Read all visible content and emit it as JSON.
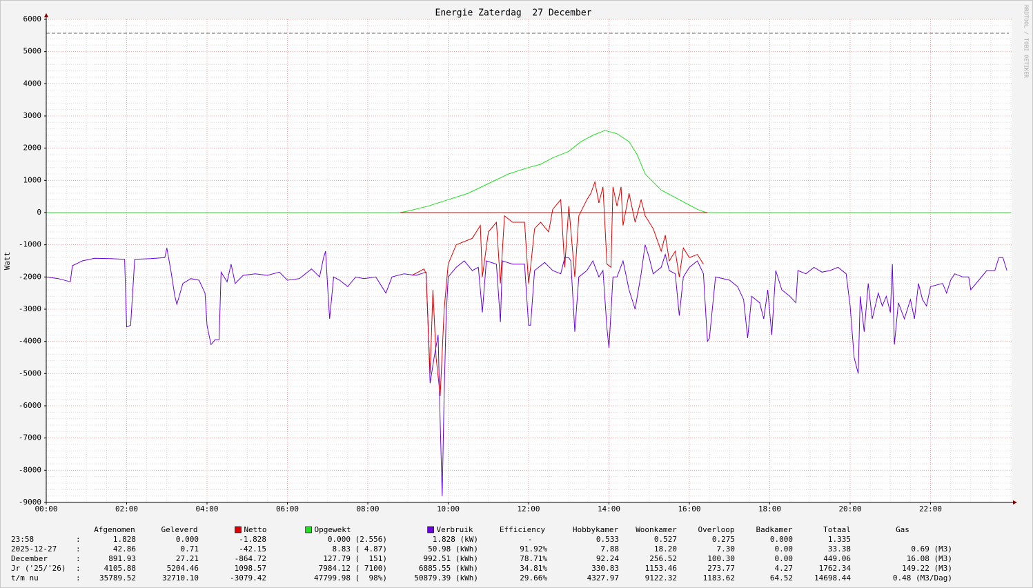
{
  "chart_data": {
    "type": "line",
    "title": "Energie Zaterdag  27 December",
    "y_label": "Watt",
    "side_text": "RRDTOOL / TOBI OETIKER",
    "xlim": [
      0,
      24
    ],
    "xticks": [
      {
        "value": 0,
        "label": "00:00"
      },
      {
        "value": 2,
        "label": "02:00"
      },
      {
        "value": 4,
        "label": "04:00"
      },
      {
        "value": 6,
        "label": "06:00"
      },
      {
        "value": 8,
        "label": "08:00"
      },
      {
        "value": 10,
        "label": "10:00"
      },
      {
        "value": 12,
        "label": "12:00"
      },
      {
        "value": 14,
        "label": "14:00"
      },
      {
        "value": 16,
        "label": "16:00"
      },
      {
        "value": 18,
        "label": "18:00"
      },
      {
        "value": 20,
        "label": "20:00"
      },
      {
        "value": 22,
        "label": "22:00"
      }
    ],
    "ylim": [
      -9000,
      6000
    ],
    "yticks": [
      6000,
      5000,
      4000,
      3000,
      2000,
      1000,
      0,
      -1000,
      -2000,
      -3000,
      -4000,
      -5000,
      -6000,
      -7000,
      -8000,
      -9000
    ],
    "grid": {
      "minor_x": 0.5,
      "minor_y": 200
    },
    "limit_line": 5570,
    "series": [
      {
        "color": "#6a00e0",
        "x": [
          0,
          0.3,
          0.6,
          0.65,
          0.9,
          1.2,
          1.6,
          1.95,
          2.0,
          2.1,
          2.15,
          2.2,
          2.6,
          2.95,
          3.0,
          3.1,
          3.2,
          3.25,
          3.4,
          3.6,
          3.8,
          3.95,
          4.0,
          4.1,
          4.2,
          4.3,
          4.35,
          4.5,
          4.6,
          4.7,
          4.9,
          5.2,
          5.5,
          5.8,
          6.0,
          6.3,
          6.6,
          6.8,
          6.9,
          6.95,
          7.0,
          7.05,
          7.15,
          7.3,
          7.5,
          7.7,
          7.9,
          8.2,
          8.45,
          8.6,
          8.9,
          9.2,
          9.45,
          9.5,
          9.55,
          9.65,
          9.75,
          9.8,
          9.85,
          9.9,
          9.95,
          10.0,
          10.2,
          10.4,
          10.6,
          10.75,
          10.85,
          10.95,
          11.2,
          11.3,
          11.35,
          11.6,
          11.9,
          12.0,
          12.05,
          12.15,
          12.4,
          12.6,
          12.8,
          12.9,
          13.0,
          13.05,
          13.15,
          13.25,
          13.45,
          13.6,
          13.75,
          13.85,
          13.95,
          14.0,
          14.1,
          14.2,
          14.35,
          14.5,
          14.65,
          14.8,
          14.9,
          15.0,
          15.1,
          15.3,
          15.4,
          15.5,
          15.65,
          15.75,
          15.85,
          16.0,
          16.2,
          16.35,
          16.45,
          16.5,
          16.65,
          17.0,
          17.2,
          17.35,
          17.45,
          17.55,
          17.75,
          17.85,
          17.95,
          18.05,
          18.15,
          18.3,
          18.5,
          18.65,
          18.7,
          18.9,
          19.1,
          19.3,
          19.5,
          19.7,
          19.9,
          20.0,
          20.1,
          20.2,
          20.25,
          20.35,
          20.45,
          20.55,
          20.7,
          20.8,
          20.9,
          21.0,
          21.05,
          21.1,
          21.2,
          21.35,
          21.5,
          21.6,
          21.7,
          21.8,
          21.9,
          22.0,
          22.3,
          22.4,
          22.5,
          22.6,
          22.8,
          22.95,
          23.0,
          23.2,
          23.4,
          23.6,
          23.7,
          23.8,
          23.9
        ],
        "values": [
          -2000,
          -2050,
          -2150,
          -1650,
          -1500,
          -1420,
          -1430,
          -1450,
          -3550,
          -3500,
          -2500,
          -1450,
          -1430,
          -1400,
          -1100,
          -1800,
          -2600,
          -2850,
          -2200,
          -2050,
          -2100,
          -2500,
          -3500,
          -4100,
          -3950,
          -3950,
          -1850,
          -2150,
          -1600,
          -2200,
          -1950,
          -1900,
          -1950,
          -1850,
          -2100,
          -2050,
          -1750,
          -2000,
          -1400,
          -1200,
          -2300,
          -3300,
          -2000,
          -2100,
          -2300,
          -2000,
          -2050,
          -2000,
          -2500,
          -2000,
          -1900,
          -1950,
          -1850,
          -3500,
          -5300,
          -4500,
          -3800,
          -6500,
          -8800,
          -5600,
          -3200,
          -2000,
          -1700,
          -1500,
          -1800,
          -1700,
          -3100,
          -1500,
          -1600,
          -3400,
          -1500,
          -1600,
          -1600,
          -3500,
          -3500,
          -1800,
          -1550,
          -1800,
          -1900,
          -1400,
          -1400,
          -1500,
          -3700,
          -2000,
          -1800,
          -1500,
          -2000,
          -1800,
          -3600,
          -4200,
          -2000,
          -2000,
          -1500,
          -2400,
          -3000,
          -1900,
          -1000,
          -1400,
          -1900,
          -1700,
          -1300,
          -1800,
          -1900,
          -3200,
          -2000,
          -1700,
          -1500,
          -1900,
          -4000,
          -3900,
          -2000,
          -2100,
          -2300,
          -2700,
          -3900,
          -2600,
          -2800,
          -3300,
          -2400,
          -3800,
          -1800,
          -2400,
          -2600,
          -2800,
          -1800,
          -1900,
          -1700,
          -1850,
          -1800,
          -1700,
          -1900,
          -2900,
          -4500,
          -5000,
          -2600,
          -3700,
          -2200,
          -3300,
          -2500,
          -2900,
          -2600,
          -3100,
          -1600,
          -4100,
          -2800,
          -3300,
          -2700,
          -3300,
          -2200,
          -2700,
          -2900,
          -2300,
          -2200,
          -2500,
          -2100,
          -1900,
          -2000,
          -2000,
          -2400,
          -2100,
          -1800,
          -1800,
          -1400,
          -1400,
          -1800
        ]
      },
      {
        "color": "#22dd22",
        "x": [
          0,
          8.8,
          9.0,
          9.5,
          10.0,
          10.5,
          11.0,
          11.5,
          12.0,
          12.3,
          12.6,
          13.0,
          13.3,
          13.6,
          13.9,
          14.2,
          14.5,
          14.7,
          14.9,
          15.1,
          15.3,
          15.6,
          15.9,
          16.2,
          16.4,
          16.5,
          24
        ],
        "values": [
          0,
          0,
          50,
          200,
          400,
          600,
          900,
          1200,
          1400,
          1500,
          1700,
          1900,
          2200,
          2400,
          2550,
          2450,
          2200,
          1800,
          1200,
          950,
          700,
          500,
          300,
          100,
          10,
          0,
          0
        ]
      },
      {
        "color": "#dd0000",
        "x": [
          9.1,
          9.4,
          9.45,
          9.5,
          9.55,
          9.62,
          9.7,
          9.8,
          9.9,
          10.0,
          10.2,
          10.4,
          10.6,
          10.8,
          10.85,
          11.0,
          11.2,
          11.3,
          11.4,
          11.6,
          11.9,
          12.0,
          12.05,
          12.15,
          12.3,
          12.5,
          12.6,
          12.8,
          12.9,
          13.0,
          13.15,
          13.25,
          13.45,
          13.55,
          13.65,
          13.75,
          13.85,
          13.95,
          14.05,
          14.1,
          14.2,
          14.3,
          14.35,
          14.5,
          14.65,
          14.8,
          14.9,
          15.0,
          15.1,
          15.3,
          15.4,
          15.5,
          15.65,
          15.75,
          15.85,
          16.0,
          16.2,
          16.35
        ],
        "values": [
          -1950,
          -1750,
          -1900,
          -3500,
          -5000,
          -2400,
          -4500,
          -5700,
          -3000,
          -1600,
          -1000,
          -900,
          -800,
          -400,
          -2000,
          -600,
          -300,
          -2200,
          -100,
          -300,
          -300,
          -2200,
          -1700,
          -500,
          -300,
          -600,
          100,
          400,
          -1700,
          200,
          -2000,
          -100,
          400,
          600,
          950,
          300,
          800,
          -1600,
          -1700,
          800,
          200,
          800,
          -400,
          600,
          -300,
          400,
          -100,
          -300,
          -500,
          -1200,
          -700,
          -1500,
          -1200,
          -2000,
          -1100,
          -1400,
          -1300,
          -1600
        ]
      }
    ]
  },
  "table": {
    "headers": [
      "Afgenomen",
      "Geleverd",
      "Netto",
      "Opgewekt",
      "Verbruik",
      "Efficiency",
      "Hobbykamer",
      "Woonkamer",
      "Overloop",
      "Badkamer",
      "Totaal",
      "Gas"
    ],
    "rows": [
      [
        "23:58",
        ":",
        "1.828",
        "0.000",
        "-1.828",
        "0.000 (2.556)",
        "1.828 (kW)",
        "-",
        "0.533",
        "0.527",
        "0.275",
        "0.000",
        "1.335"
      ],
      [
        "2025-12-27",
        ":",
        "42.86",
        "0.71",
        "-42.15",
        "8.83 ( 4.87)",
        "50.98 (kWh)",
        "91.92%",
        "7.88",
        "18.20",
        "7.30",
        "0.00",
        "33.38",
        "0.69 (M3)"
      ],
      [
        "December",
        ":",
        "891.93",
        "27.21",
        "-864.72",
        "127.79 (  151)",
        "992.51 (kWh)",
        "78.71%",
        "92.24",
        "256.52",
        "100.30",
        "0.00",
        "449.06",
        "16.08 (M3)"
      ],
      [
        "Jr ('25/'26)",
        ":",
        "4105.88",
        "5204.46",
        "1098.57",
        "7984.12 ( 7100)",
        "6885.55 (kWh)",
        "34.81%",
        "330.83",
        "1153.46",
        "273.77",
        "4.27",
        "1762.34",
        "149.22 (M3)"
      ],
      [
        "t/m nu",
        ":",
        "35789.52",
        "32710.10",
        "-3079.42",
        "47799.98 (  98%)",
        "50879.39 (kWh)",
        "29.66%",
        "4327.97",
        "9122.32",
        "1183.62",
        "64.52",
        "14698.44",
        "0.48 (M3/Dag)"
      ]
    ]
  }
}
